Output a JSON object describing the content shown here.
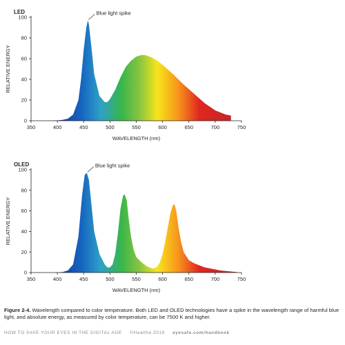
{
  "chart_data": [
    {
      "type": "area",
      "title": "LED",
      "xlabel": "WAVELENGTH (nm)",
      "ylabel": "RELATIVE ENERGY",
      "xlim": [
        350,
        750
      ],
      "ylim": [
        0,
        100
      ],
      "x_ticks": [
        350,
        400,
        450,
        500,
        550,
        600,
        650,
        700,
        750
      ],
      "y_ticks": [
        0,
        20,
        40,
        60,
        80,
        100
      ],
      "annotation": {
        "text": "Blue light spike",
        "x": 458,
        "y": 97
      },
      "series": [
        {
          "x": [
            380,
            400,
            410,
            420,
            430,
            440,
            445,
            450,
            455,
            458,
            460,
            465,
            470,
            480,
            490,
            495,
            500,
            510,
            520,
            530,
            540,
            550,
            560,
            565,
            570,
            580,
            590,
            600,
            620,
            640,
            660,
            680,
            700,
            720,
            730
          ],
          "y": [
            0,
            0.3,
            0.8,
            2,
            6,
            20,
            40,
            68,
            90,
            97,
            93,
            70,
            45,
            24,
            18,
            18,
            21,
            30,
            42,
            52,
            58,
            62,
            63.5,
            63.5,
            63,
            61,
            58,
            54,
            45,
            35,
            26,
            17,
            10,
            6,
            5
          ]
        }
      ]
    },
    {
      "type": "area",
      "title": "OLED",
      "xlabel": "WAVELENGTH (nm)",
      "ylabel": "RELATIVE ENERGY",
      "xlim": [
        350,
        750
      ],
      "ylim": [
        0,
        100
      ],
      "x_ticks": [
        350,
        400,
        450,
        500,
        550,
        600,
        650,
        700,
        750
      ],
      "y_ticks": [
        0,
        20,
        40,
        60,
        80,
        100
      ],
      "annotation": {
        "text": "Blue light spike",
        "x": 456,
        "y": 97
      },
      "series": [
        {
          "x": [
            395,
            410,
            420,
            430,
            440,
            447,
            452,
            456,
            460,
            465,
            470,
            480,
            490,
            495,
            500,
            505,
            510,
            515,
            520,
            525,
            528,
            532,
            535,
            540,
            545,
            550,
            560,
            570,
            580,
            585,
            590,
            595,
            600,
            605,
            610,
            615,
            620,
            623,
            626,
            630,
            635,
            640,
            650,
            660,
            670,
            680,
            690,
            700,
            710,
            720,
            730,
            740,
            745
          ],
          "y": [
            0,
            0.5,
            2,
            8,
            35,
            75,
            95,
            97,
            90,
            65,
            40,
            18,
            8,
            5,
            5,
            8,
            18,
            38,
            62,
            75,
            76,
            70,
            55,
            35,
            22,
            15,
            10,
            6,
            4,
            4,
            6,
            10,
            18,
            30,
            44,
            58,
            66,
            66,
            60,
            45,
            30,
            20,
            12,
            9,
            7,
            5,
            4,
            3,
            2,
            1.5,
            1,
            0.5,
            0
          ]
        }
      ]
    }
  ],
  "caption": {
    "label": "Figure 2-4.",
    "text": "Wavelength compared to color temperature. Both LED and OLED technologies have a spike in the wavelength range of harmful blue light, and absolute energy, as measured by color temperature, can be 7500 K and higher."
  },
  "footer": {
    "book": "HOW TO SAVE YOUR EYES IN THE DIGITAL AGE",
    "copyright": "©Healthe 2019",
    "url": "eyesafe.com/handbook"
  },
  "colors": {
    "axis": "#231f20",
    "spectrum": [
      "#1a2f8c",
      "#1565c0",
      "#2ea0c8",
      "#39b54a",
      "#8dc63f",
      "#f7e51b",
      "#f7941d",
      "#e0261f",
      "#c1272d"
    ]
  }
}
